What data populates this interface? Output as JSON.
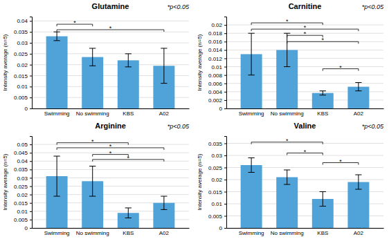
{
  "chart_data": [
    {
      "type": "bar",
      "title": "Glutamine",
      "y_label": "Intensity average (n=5)",
      "annotation": "*p<0.05",
      "categories": [
        "Swimming",
        "No swimming",
        "KBS",
        "A02"
      ],
      "values": [
        0.033,
        0.0235,
        0.022,
        0.0195
      ],
      "errors": [
        0.002,
        0.004,
        0.003,
        0.008
      ],
      "color": "#4fa3d9",
      "grid": true,
      "ylim": [
        0,
        0.042
      ],
      "yticks": [
        0,
        0.005,
        0.01,
        0.015,
        0.02,
        0.025,
        0.03,
        0.035,
        0.04
      ],
      "brackets": [
        {
          "from": "Swimming",
          "to": "No swimming",
          "y": 0.0385,
          "label": "*"
        },
        {
          "from": "Swimming",
          "to": "A02",
          "y": 0.036,
          "label": "*"
        }
      ]
    },
    {
      "type": "bar",
      "title": "Carnitine",
      "y_label": "Intensity average (n=5)",
      "annotation": "*p<0.05",
      "categories": [
        "Swimming",
        "No swimming",
        "KBS",
        "A02"
      ],
      "values": [
        0.013,
        0.014,
        0.0037,
        0.0052
      ],
      "errors": [
        0.005,
        0.004,
        0.0005,
        0.001
      ],
      "color": "#4fa3d9",
      "grid": true,
      "ylim": [
        0,
        0.022
      ],
      "yticks": [
        0,
        0.002,
        0.004,
        0.006,
        0.008,
        0.01,
        0.012,
        0.014,
        0.016,
        0.018,
        0.02
      ],
      "brackets": [
        {
          "from": "Swimming",
          "to": "KBS",
          "y": 0.0205,
          "label": "*"
        },
        {
          "from": "Swimming",
          "to": "A02",
          "y": 0.019,
          "label": "*"
        },
        {
          "from": "No swimming",
          "to": "KBS",
          "y": 0.0175,
          "label": "*"
        },
        {
          "from": "No swimming",
          "to": "A02",
          "y": 0.016,
          "label": "*"
        },
        {
          "from": "KBS",
          "to": "A02",
          "y": 0.0095,
          "label": "*"
        }
      ]
    },
    {
      "type": "bar",
      "title": "Arginine",
      "y_label": "Intensity average (n=5)",
      "annotation": "*p<0.05",
      "categories": [
        "Swimming",
        "No swimming",
        "KBS",
        "A02"
      ],
      "values": [
        0.031,
        0.028,
        0.009,
        0.015
      ],
      "errors": [
        0.012,
        0.009,
        0.003,
        0.004
      ],
      "color": "#4fa3d9",
      "grid": true,
      "ylim": [
        0,
        0.055
      ],
      "yticks": [
        0,
        0.005,
        0.01,
        0.015,
        0.02,
        0.025,
        0.03,
        0.035,
        0.04,
        0.045,
        0.05
      ],
      "brackets": [
        {
          "from": "Swimming",
          "to": "KBS",
          "y": 0.051,
          "label": "*"
        },
        {
          "from": "Swimming",
          "to": "A02",
          "y": 0.048,
          "label": "*"
        },
        {
          "from": "No swimming",
          "to": "KBS",
          "y": 0.044,
          "label": "*"
        },
        {
          "from": "No swimming",
          "to": "A02",
          "y": 0.041,
          "label": "*"
        }
      ]
    },
    {
      "type": "bar",
      "title": "Valine",
      "y_label": "Intensity average (n=5)",
      "annotation": "*p<0.05",
      "categories": [
        "Swimming",
        "No swimming",
        "KBS",
        "A02"
      ],
      "values": [
        0.026,
        0.021,
        0.012,
        0.019
      ],
      "errors": [
        0.003,
        0.003,
        0.003,
        0.003
      ],
      "color": "#4fa3d9",
      "grid": true,
      "ylim": [
        0,
        0.038
      ],
      "yticks": [
        0,
        0.005,
        0.01,
        0.015,
        0.02,
        0.025,
        0.03,
        0.035
      ],
      "brackets": [
        {
          "from": "Swimming",
          "to": "KBS",
          "y": 0.0355,
          "label": "*"
        },
        {
          "from": "No swimming",
          "to": "KBS",
          "y": 0.031,
          "label": "*"
        },
        {
          "from": "KBS",
          "to": "A02",
          "y": 0.027,
          "label": "*"
        }
      ]
    }
  ]
}
